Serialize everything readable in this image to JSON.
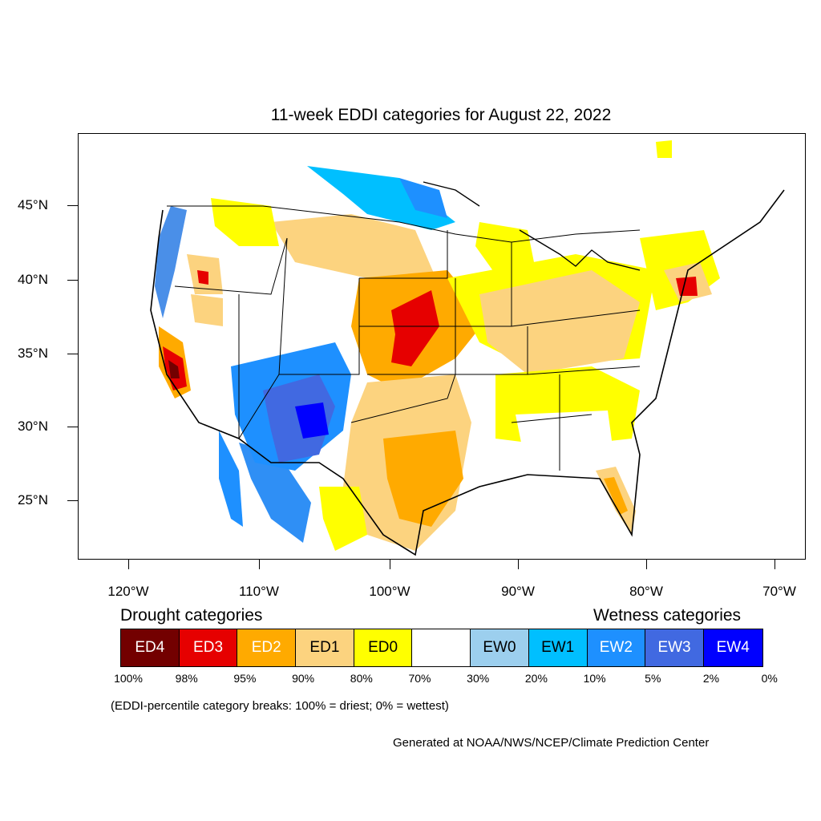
{
  "title": "11-week EDDI categories for August 22, 2022",
  "latitude_labels": [
    "45°N",
    "40°N",
    "35°N",
    "30°N",
    "25°N"
  ],
  "longitude_labels": [
    "120°W",
    "110°W",
    "100°W",
    "90°W",
    "80°W",
    "70°W"
  ],
  "legend": {
    "drought_heading": "Drought categories",
    "wetness_heading": "Wetness categories",
    "categories": [
      {
        "label": "ED4",
        "color": "#730000",
        "text_color": "#ffffff"
      },
      {
        "label": "ED3",
        "color": "#e60000",
        "text_color": "#ffffff"
      },
      {
        "label": "ED2",
        "color": "#ffaa00",
        "text_color": "#ffffff"
      },
      {
        "label": "ED1",
        "color": "#fcd37f",
        "text_color": "#000000"
      },
      {
        "label": "ED0",
        "color": "#ffff00",
        "text_color": "#000000"
      },
      {
        "label": "",
        "color": "#ffffff",
        "text_color": "#000000"
      },
      {
        "label": "EW0",
        "color": "#9ccfee",
        "text_color": "#000000"
      },
      {
        "label": "EW1",
        "color": "#00bfff",
        "text_color": "#000000"
      },
      {
        "label": "EW2",
        "color": "#1e90ff",
        "text_color": "#ffffff"
      },
      {
        "label": "EW3",
        "color": "#4169e1",
        "text_color": "#ffffff"
      },
      {
        "label": "EW4",
        "color": "#0000ff",
        "text_color": "#ffffff"
      }
    ],
    "breaks": [
      "100%",
      "98%",
      "95%",
      "90%",
      "80%",
      "70%",
      "30%",
      "20%",
      "10%",
      "5%",
      "2%",
      "0%"
    ]
  },
  "note": "(EDDI-percentile category breaks: 100% = driest; 0% = wettest)",
  "credit": "Generated at NOAA/NWS/NCEP/Climate Prediction Center"
}
